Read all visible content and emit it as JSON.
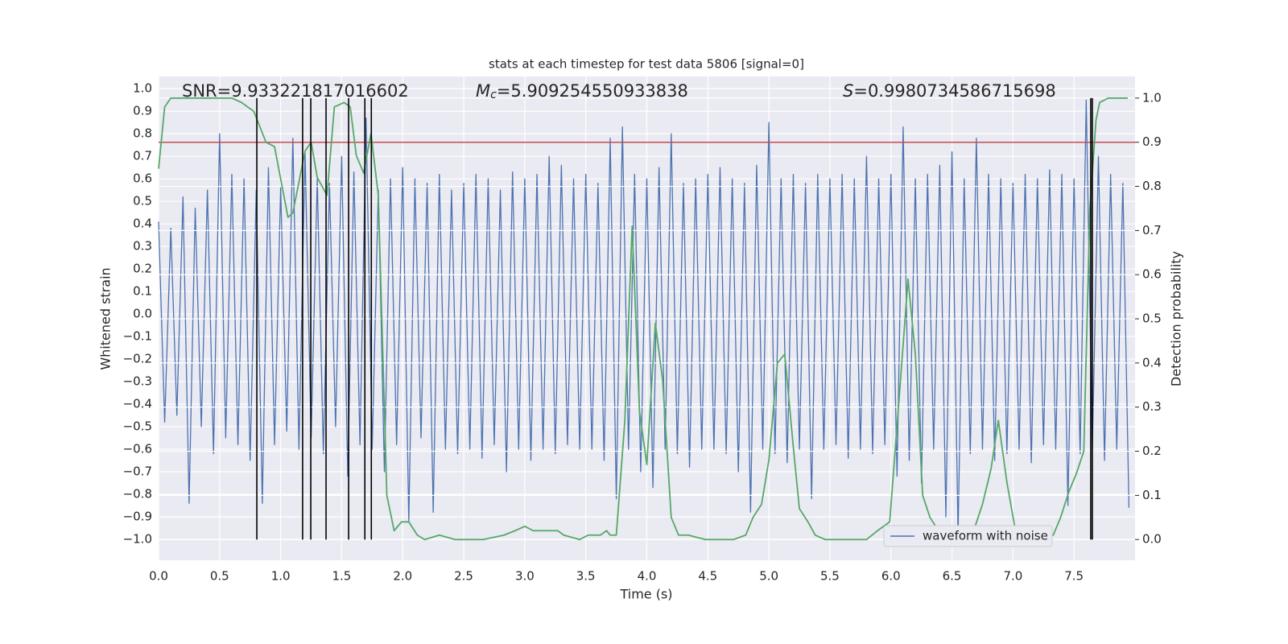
{
  "chart_data": {
    "type": "line",
    "title": "stats at each timestep for test data 5806 [signal=0]",
    "xlabel": "Time (s)",
    "ylabel": "Whitened strain",
    "y2label": "Detection probability",
    "xlim": [
      0,
      8.0
    ],
    "ylim": [
      -1.093,
      1.054
    ],
    "y2lim": [
      -0.047,
      1.049
    ],
    "grid": true,
    "legend": "lower right",
    "background": "#eaeaf2",
    "xticks": [
      {
        "value": 0,
        "label": "0.0"
      },
      {
        "value": 0.5,
        "label": "0.5"
      },
      {
        "value": 1,
        "label": "1.0"
      },
      {
        "value": 1.5,
        "label": "1.5"
      },
      {
        "value": 2,
        "label": "2.0"
      },
      {
        "value": 2.5,
        "label": "2.5"
      },
      {
        "value": 3,
        "label": "3.0"
      },
      {
        "value": 3.5,
        "label": "3.5"
      },
      {
        "value": 4,
        "label": "4.0"
      },
      {
        "value": 4.5,
        "label": "4.5"
      },
      {
        "value": 5,
        "label": "5.0"
      },
      {
        "value": 5.5,
        "label": "5.5"
      },
      {
        "value": 6,
        "label": "6.0"
      },
      {
        "value": 6.5,
        "label": "6.5"
      },
      {
        "value": 7,
        "label": "7.0"
      },
      {
        "value": 7.5,
        "label": "7.5"
      }
    ],
    "yticks": [
      {
        "value": -1,
        "label": "−1.0"
      },
      {
        "value": -0.9,
        "label": "−0.9"
      },
      {
        "value": -0.8,
        "label": "−0.8"
      },
      {
        "value": -0.7,
        "label": "−0.7"
      },
      {
        "value": -0.6,
        "label": "−0.6"
      },
      {
        "value": -0.5,
        "label": "−0.5"
      },
      {
        "value": -0.4,
        "label": "−0.4"
      },
      {
        "value": -0.3,
        "label": "−0.3"
      },
      {
        "value": -0.2,
        "label": "−0.2"
      },
      {
        "value": -0.1,
        "label": "−0.1"
      },
      {
        "value": 0,
        "label": "0.0"
      },
      {
        "value": 0.1,
        "label": "0.1"
      },
      {
        "value": 0.2,
        "label": "0.2"
      },
      {
        "value": 0.3,
        "label": "0.3"
      },
      {
        "value": 0.4,
        "label": "0.4"
      },
      {
        "value": 0.5,
        "label": "0.5"
      },
      {
        "value": 0.6,
        "label": "0.6"
      },
      {
        "value": 0.7,
        "label": "0.7"
      },
      {
        "value": 0.8,
        "label": "0.8"
      },
      {
        "value": 0.9,
        "label": "0.9"
      },
      {
        "value": 1,
        "label": "1.0"
      }
    ],
    "y2ticks": [
      {
        "value": 0,
        "label": "0.0"
      },
      {
        "value": 0.1,
        "label": "0.1"
      },
      {
        "value": 0.2,
        "label": "0.2"
      },
      {
        "value": 0.3,
        "label": "0.3"
      },
      {
        "value": 0.4,
        "label": "0.4"
      },
      {
        "value": 0.5,
        "label": "0.5"
      },
      {
        "value": 0.6,
        "label": "0.6"
      },
      {
        "value": 0.7,
        "label": "0.7"
      },
      {
        "value": 0.8,
        "label": "0.8"
      },
      {
        "value": 0.9,
        "label": "0.9"
      },
      {
        "value": 1,
        "label": "1.0"
      }
    ],
    "annotations": [
      {
        "text": "SNR=9.933221817016602"
      },
      {
        "symbol": "M",
        "subscript": "c",
        "text": "=5.909254550933838"
      },
      {
        "symbol": "S",
        "text": "=0.9980734586715698"
      }
    ],
    "series": [
      {
        "name": "waveform with noise",
        "color": "#4c72b0",
        "x": [
          0,
          0.05,
          0.1,
          0.15,
          0.2,
          0.25,
          0.3,
          0.35,
          0.4,
          0.45,
          0.5,
          0.55,
          0.6,
          0.65,
          0.7,
          0.75,
          0.8,
          0.85,
          0.9,
          0.95,
          1,
          1.05,
          1.1,
          1.15,
          1.2,
          1.25,
          1.3,
          1.35,
          1.4,
          1.45,
          1.5,
          1.55,
          1.6,
          1.65,
          1.7,
          1.75,
          1.8,
          1.85,
          1.9,
          1.95,
          2,
          2.05,
          2.1,
          2.15,
          2.2,
          2.25,
          2.3,
          2.35,
          2.4,
          2.45,
          2.5,
          2.55,
          2.6,
          2.65,
          2.7,
          2.75,
          2.8,
          2.85,
          2.9,
          2.95,
          3,
          3.05,
          3.1,
          3.15,
          3.2,
          3.25,
          3.3,
          3.35,
          3.4,
          3.45,
          3.5,
          3.55,
          3.6,
          3.65,
          3.7,
          3.75,
          3.8,
          3.85,
          3.9,
          3.95,
          4,
          4.05,
          4.1,
          4.15,
          4.2,
          4.25,
          4.3,
          4.35,
          4.4,
          4.45,
          4.5,
          4.55,
          4.6,
          4.65,
          4.7,
          4.75,
          4.8,
          4.85,
          4.9,
          4.95,
          5,
          5.05,
          5.1,
          5.15,
          5.2,
          5.25,
          5.3,
          5.35,
          5.4,
          5.45,
          5.5,
          5.55,
          5.6,
          5.65,
          5.7,
          5.75,
          5.8,
          5.85,
          5.9,
          5.95,
          6,
          6.05,
          6.1,
          6.15,
          6.2,
          6.25,
          6.3,
          6.35,
          6.4,
          6.45,
          6.5,
          6.55,
          6.6,
          6.65,
          6.7,
          6.75,
          6.8,
          6.85,
          6.9,
          6.95,
          7,
          7.05,
          7.1,
          7.15,
          7.2,
          7.25,
          7.3,
          7.35,
          7.4,
          7.45,
          7.5,
          7.55,
          7.6,
          7.65,
          7.7,
          7.75,
          7.8,
          7.85,
          7.9,
          7.95
        ],
        "values": [
          0.41,
          -0.48,
          0.38,
          -0.45,
          0.52,
          -0.84,
          0.47,
          -0.5,
          0.55,
          -0.62,
          0.8,
          -0.55,
          0.62,
          -0.58,
          0.6,
          -0.65,
          0.55,
          -0.84,
          0.65,
          -0.58,
          0.56,
          -0.52,
          0.78,
          -0.6,
          0.72,
          -0.55,
          0.6,
          -0.62,
          0.58,
          -0.5,
          0.7,
          -0.72,
          0.63,
          -0.58,
          0.87,
          -0.6,
          0.55,
          -0.7,
          0.6,
          -0.58,
          0.65,
          -0.92,
          0.6,
          -0.55,
          0.58,
          -0.88,
          0.62,
          -0.6,
          0.55,
          -0.62,
          0.58,
          -0.6,
          0.62,
          -0.64,
          0.6,
          -0.58,
          0.55,
          -0.7,
          0.63,
          -0.6,
          0.6,
          -0.65,
          0.62,
          -0.6,
          0.7,
          -0.62,
          0.66,
          -0.58,
          0.6,
          -0.6,
          0.62,
          -0.6,
          0.58,
          -0.65,
          0.78,
          -0.82,
          0.83,
          -0.6,
          0.62,
          -0.7,
          0.6,
          -0.77,
          0.65,
          -0.6,
          0.8,
          -0.62,
          0.58,
          -0.68,
          0.6,
          -0.6,
          0.62,
          -0.6,
          0.65,
          -0.62,
          0.6,
          -0.7,
          0.58,
          -0.88,
          0.66,
          -0.6,
          0.85,
          -0.62,
          0.6,
          -0.66,
          0.62,
          -0.6,
          0.58,
          -0.82,
          0.62,
          -0.6,
          0.6,
          -0.58,
          0.62,
          -0.64,
          0.6,
          -0.6,
          0.7,
          -0.62,
          0.6,
          -0.58,
          0.62,
          -0.72,
          0.83,
          -0.65,
          0.6,
          -0.75,
          0.62,
          -0.6,
          0.66,
          -0.9,
          0.72,
          -0.98,
          0.6,
          -0.62,
          0.78,
          -0.6,
          0.62,
          -0.65,
          0.6,
          -0.62,
          0.58,
          -0.6,
          0.62,
          -0.66,
          0.6,
          -0.58,
          0.64,
          -0.6,
          0.62,
          -0.85,
          0.6,
          -0.62,
          0.95,
          -0.6,
          0.7,
          -0.65,
          0.62,
          -0.6,
          0.58,
          -0.86
        ]
      },
      {
        "color": "#55a868",
        "axis": "y2",
        "x": [
          0,
          0.05,
          0.1,
          0.6,
          0.68,
          0.78,
          0.88,
          0.95,
          1.06,
          1.1,
          1.2,
          1.25,
          1.3,
          1.38,
          1.44,
          1.52,
          1.57,
          1.62,
          1.68,
          1.74,
          1.8,
          1.87,
          1.93,
          1.99,
          2.05,
          2.12,
          2.18,
          2.3,
          2.43,
          2.66,
          2.83,
          2.92,
          3,
          3.07,
          3.14,
          3.2,
          3.27,
          3.32,
          3.45,
          3.52,
          3.62,
          3.67,
          3.7,
          3.75,
          3.82,
          3.88,
          3.94,
          4,
          4.07,
          4.13,
          4.2,
          4.26,
          4.34,
          4.48,
          4.71,
          4.81,
          4.87,
          4.94,
          5,
          5.07,
          5.13,
          5.2,
          5.25,
          5.32,
          5.38,
          5.46,
          5.8,
          5.89,
          5.99,
          6.07,
          6.14,
          6.2,
          6.26,
          6.32,
          6.39,
          6.45,
          6.55,
          6.62,
          6.69,
          6.75,
          6.82,
          6.88,
          6.95,
          7.02,
          7.08,
          7.18,
          7.26,
          7.33,
          7.39,
          7.46,
          7.52,
          7.58,
          7.63,
          7.68,
          7.71,
          7.78,
          7.94
        ],
        "values": [
          0.84,
          0.98,
          1,
          1,
          0.99,
          0.97,
          0.9,
          0.89,
          0.73,
          0.74,
          0.88,
          0.9,
          0.82,
          0.78,
          0.98,
          0.99,
          0.98,
          0.87,
          0.83,
          0.92,
          0.78,
          0.1,
          0.02,
          0.04,
          0.04,
          0.01,
          0,
          0.01,
          0,
          0,
          0.01,
          0.02,
          0.03,
          0.02,
          0.02,
          0.02,
          0.02,
          0.01,
          0,
          0.01,
          0.01,
          0.02,
          0.01,
          0.01,
          0.27,
          0.71,
          0.29,
          0.17,
          0.49,
          0.36,
          0.05,
          0.01,
          0.01,
          0,
          0,
          0.01,
          0.05,
          0.08,
          0.18,
          0.4,
          0.42,
          0.21,
          0.07,
          0.04,
          0.01,
          0,
          0,
          0.02,
          0.04,
          0.33,
          0.59,
          0.42,
          0.1,
          0.05,
          0.02,
          0.01,
          0,
          0.01,
          0.03,
          0.08,
          0.16,
          0.27,
          0.13,
          0.02,
          0.01,
          0.01,
          0.01,
          0.01,
          0.05,
          0.11,
          0.15,
          0.2,
          0.75,
          0.95,
          0.99,
          1,
          1
        ]
      }
    ],
    "hlines": [
      {
        "value": 0.9,
        "axis": "y2",
        "color": "#c44e52"
      }
    ],
    "vlines": {
      "x": [
        0.805,
        1.18,
        1.247,
        1.372,
        1.557,
        1.69,
        1.743,
        7.637,
        7.65
      ],
      "span": [
        0,
        1
      ],
      "axis": "y2",
      "color": "#000000"
    }
  }
}
